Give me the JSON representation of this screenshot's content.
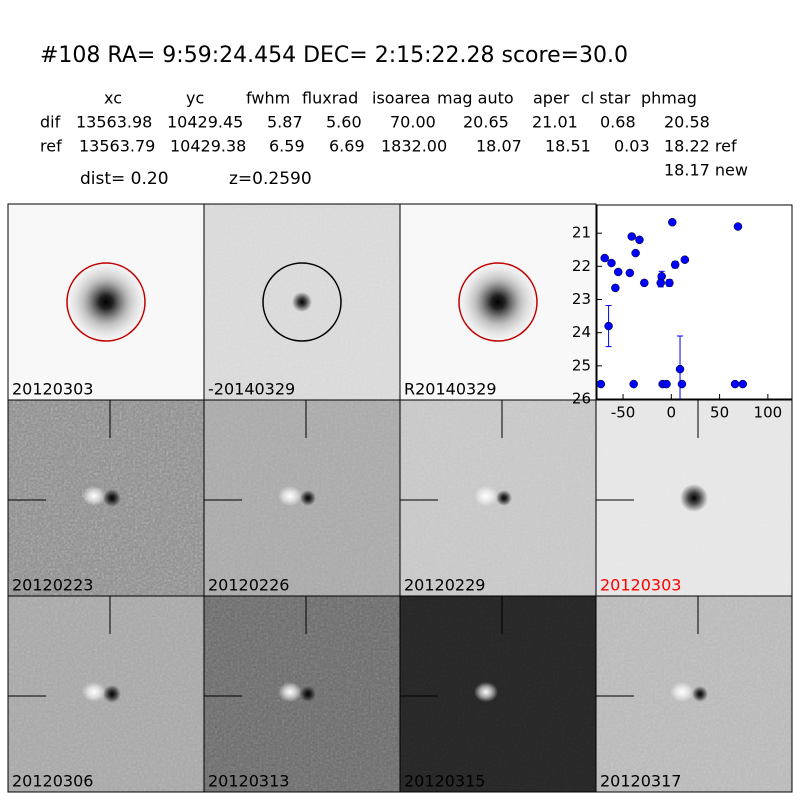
{
  "header": {
    "title": "#108   RA= 9:59:24.454 DEC= 2:15:22.28      score=30.0",
    "columns": [
      "xc",
      "yc",
      "fwhm",
      "fluxrad",
      "isoarea",
      "mag auto",
      "aper",
      "cl star",
      "phmag"
    ],
    "rows": [
      [
        "dif",
        "13563.98",
        "10429.45",
        "5.87",
        "5.60",
        "70.00",
        "20.65",
        "21.01",
        "0.68",
        "20.58"
      ],
      [
        "ref",
        "13563.79",
        "10429.38",
        "6.59",
        "6.69",
        "1832.00",
        "18.07",
        "18.51",
        "0.03",
        "18.22 ref"
      ]
    ],
    "dist": "dist=  0.20",
    "z": "z=0.2590",
    "new": "18.17 new"
  },
  "panels": [
    {
      "label": "20120303"
    },
    {
      "label": "-20140329"
    },
    {
      "label": "R20140329"
    },
    {
      "label": "20120223"
    },
    {
      "label": "20120226"
    },
    {
      "label": "20120229"
    },
    {
      "label": "20120303",
      "color": "#ff0000"
    },
    {
      "label": "20120306"
    },
    {
      "label": "20120313"
    },
    {
      "label": "20120315"
    },
    {
      "label": "20120317"
    }
  ],
  "chart_data": {
    "type": "scatter",
    "color": "#0000ff",
    "x": [
      -69,
      -62,
      -58,
      -55,
      -65,
      -43,
      -41,
      -37,
      -33,
      -28,
      1,
      -10,
      -11,
      -2,
      4,
      14,
      69,
      9,
      -73,
      -39,
      -9,
      -5,
      11,
      66,
      74
    ],
    "values": [
      21.75,
      21.9,
      22.65,
      22.17,
      23.8,
      22.2,
      21.1,
      21.6,
      21.2,
      22.5,
      20.67,
      22.3,
      22.5,
      22.5,
      21.95,
      21.8,
      20.8,
      25.1,
      25.55,
      25.55,
      25.55,
      25.55,
      25.55,
      25.55,
      25.55
    ],
    "errors": [
      0.05,
      0.05,
      0.08,
      0.05,
      0.62,
      0.05,
      0.05,
      0.05,
      0.05,
      0.08,
      0.03,
      0.15,
      0.12,
      0.1,
      0.1,
      0.05,
      0.03,
      1.0,
      0.03,
      0.03,
      0.03,
      0.03,
      0.03,
      0.03,
      0.03
    ],
    "xlim": [
      -77,
      125
    ],
    "ylim": [
      26,
      20.15
    ],
    "xticks": [
      -50,
      0,
      50,
      100
    ],
    "yticks": [
      21,
      22,
      23,
      24,
      25,
      26
    ]
  }
}
